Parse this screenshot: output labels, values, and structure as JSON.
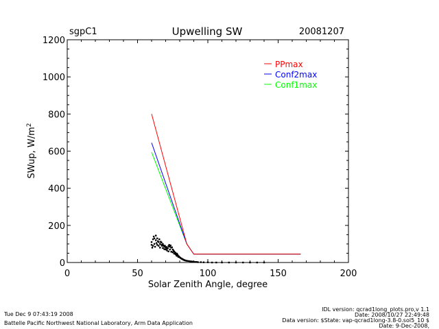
{
  "header": {
    "site": "sgpC1",
    "title": "Upwelling SW",
    "date": "20081207"
  },
  "footer": {
    "left_line1": "Tue Dec  9 07:43:19 2008",
    "left_line2": "Battelle Pacific Northwest National Laboratory, Arm Data Application",
    "right_line1": "IDL version: qcrad1long_plots.pro,v 1.1",
    "right_line2": "Date: 2008/10/27 22:49:48",
    "right_line3": "Data version: $State: vap-qcrad1long-3.8-0.sol5_10 $",
    "right_line4": "Date: 9-Dec-2008,"
  },
  "colors": {
    "PPmax": "#ff0000",
    "Conf2max": "#0000ff",
    "Conf1max": "#00ff00",
    "data": "#000000"
  },
  "chart_data": {
    "type": "line",
    "title": "Upwelling SW",
    "xlabel": "Solar Zenith Angle, degree",
    "ylabel": "SWup, W/m",
    "ylabel_sup": "2",
    "xlim": [
      0,
      200
    ],
    "ylim": [
      0,
      1200
    ],
    "xticks": [
      0,
      50,
      100,
      150,
      200
    ],
    "yticks": [
      0,
      200,
      400,
      600,
      800,
      1000,
      1200
    ],
    "legend_position": "top-right",
    "series": [
      {
        "name": "PPmax",
        "color": "#ff0000",
        "x": [
          60,
          85,
          90,
          166
        ],
        "y": [
          800,
          100,
          45,
          45
        ]
      },
      {
        "name": "Conf2max",
        "color": "#0000ff",
        "x": [
          60,
          85,
          90,
          166
        ],
        "y": [
          645,
          100,
          45,
          45
        ]
      },
      {
        "name": "Conf1max",
        "color": "#00ff00",
        "x": [
          60,
          85,
          90,
          166
        ],
        "y": [
          595,
          100,
          45,
          45
        ]
      }
    ],
    "scatter": {
      "color": "#000000",
      "points": [
        [
          60,
          95
        ],
        [
          60,
          110
        ],
        [
          60.5,
          80
        ],
        [
          61,
          125
        ],
        [
          61,
          90
        ],
        [
          61.5,
          140
        ],
        [
          62,
          100
        ],
        [
          62,
          130
        ],
        [
          62.5,
          85
        ],
        [
          63,
          120
        ],
        [
          63,
          145
        ],
        [
          63.5,
          105
        ],
        [
          64,
          130
        ],
        [
          64,
          95
        ],
        [
          64.5,
          115
        ],
        [
          65,
          110
        ],
        [
          65,
          90
        ],
        [
          65.5,
          125
        ],
        [
          66,
          100
        ],
        [
          66,
          80
        ],
        [
          66.5,
          112
        ],
        [
          67,
          95
        ],
        [
          67,
          108
        ],
        [
          67.5,
          90
        ],
        [
          68,
          100
        ],
        [
          68,
          78
        ],
        [
          68.5,
          92
        ],
        [
          69,
          85
        ],
        [
          69,
          72
        ],
        [
          69.5,
          90
        ],
        [
          70,
          80
        ],
        [
          70,
          70
        ],
        [
          70.5,
          84
        ],
        [
          71,
          75
        ],
        [
          71,
          65
        ],
        [
          71.5,
          78
        ],
        [
          72,
          88
        ],
        [
          72,
          60
        ],
        [
          72.5,
          95
        ],
        [
          73,
          85
        ],
        [
          73,
          70
        ],
        [
          73.5,
          92
        ],
        [
          74,
          80
        ],
        [
          74,
          58
        ],
        [
          74.5,
          82
        ],
        [
          75,
          70
        ],
        [
          75,
          55
        ],
        [
          75.5,
          65
        ],
        [
          76,
          60
        ],
        [
          76,
          48
        ],
        [
          76.5,
          55
        ],
        [
          77,
          45
        ],
        [
          77,
          52
        ],
        [
          77.5,
          40
        ],
        [
          78,
          48
        ],
        [
          78,
          36
        ],
        [
          78.5,
          42
        ],
        [
          79,
          35
        ],
        [
          79,
          30
        ],
        [
          79.5,
          32
        ],
        [
          80,
          28
        ],
        [
          80.5,
          25
        ],
        [
          81,
          22
        ],
        [
          81.5,
          20
        ],
        [
          82,
          18
        ],
        [
          82.5,
          16
        ],
        [
          83,
          14
        ],
        [
          83.5,
          12
        ],
        [
          84,
          11
        ],
        [
          84.5,
          10
        ],
        [
          85,
          9
        ],
        [
          86,
          8
        ],
        [
          87,
          7
        ],
        [
          88,
          6
        ],
        [
          89,
          5
        ],
        [
          90,
          4
        ],
        [
          91,
          3
        ],
        [
          92,
          3
        ],
        [
          93,
          2
        ],
        [
          95,
          2
        ],
        [
          97,
          1
        ],
        [
          100,
          1
        ],
        [
          103,
          0
        ],
        [
          106,
          0
        ],
        [
          110,
          0
        ],
        [
          115,
          0
        ],
        [
          120,
          0
        ],
        [
          125,
          0
        ],
        [
          130,
          0
        ],
        [
          135,
          0
        ],
        [
          140,
          0
        ]
      ]
    }
  }
}
